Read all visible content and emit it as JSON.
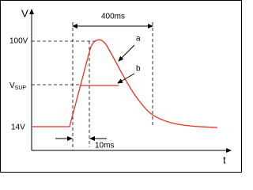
{
  "axes": {
    "y_label": "V",
    "x_label": "t"
  },
  "levels": {
    "top": "100V",
    "supply": {
      "main": "V",
      "sub": "SUP"
    },
    "base": "14V"
  },
  "annotations": {
    "duration": "400ms",
    "rise": "10ms",
    "curve_a": "a",
    "curve_b": "b"
  }
}
